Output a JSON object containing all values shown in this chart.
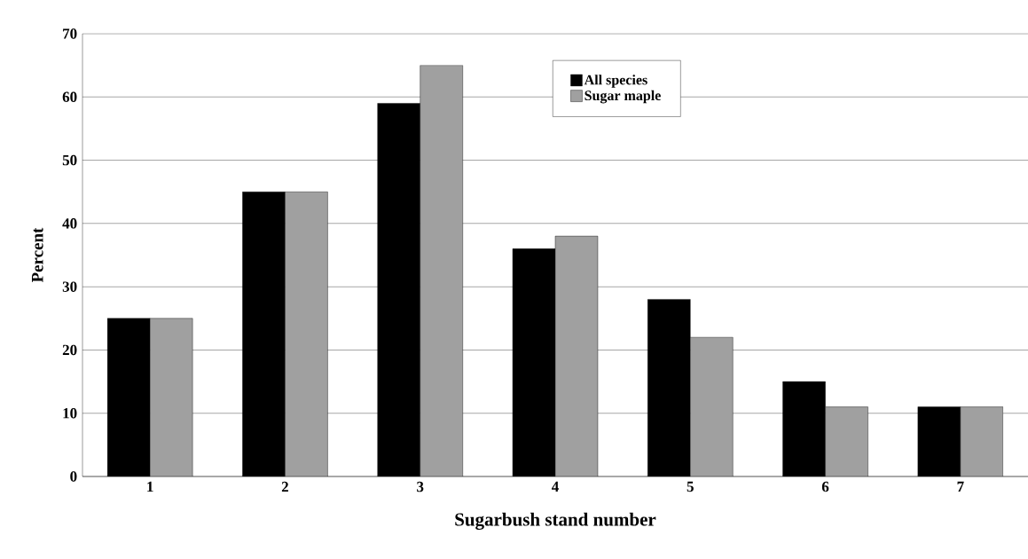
{
  "chart_data": {
    "type": "bar",
    "xlabel": "Sugarbush stand number",
    "ylabel": "Percent",
    "categories": [
      "1",
      "2",
      "3",
      "4",
      "5",
      "6",
      "7"
    ],
    "series": [
      {
        "name": "All species",
        "color": "#000000",
        "values": [
          25,
          45,
          59,
          36,
          28,
          15,
          11
        ]
      },
      {
        "name": "Sugar maple",
        "color": "#a0a0a0",
        "values": [
          25,
          45,
          65,
          38,
          22,
          11,
          11
        ]
      }
    ],
    "ylim": [
      0,
      70
    ],
    "yticks": [
      0,
      10,
      20,
      30,
      40,
      50,
      60,
      70
    ],
    "grid": "y",
    "legend": "top"
  }
}
